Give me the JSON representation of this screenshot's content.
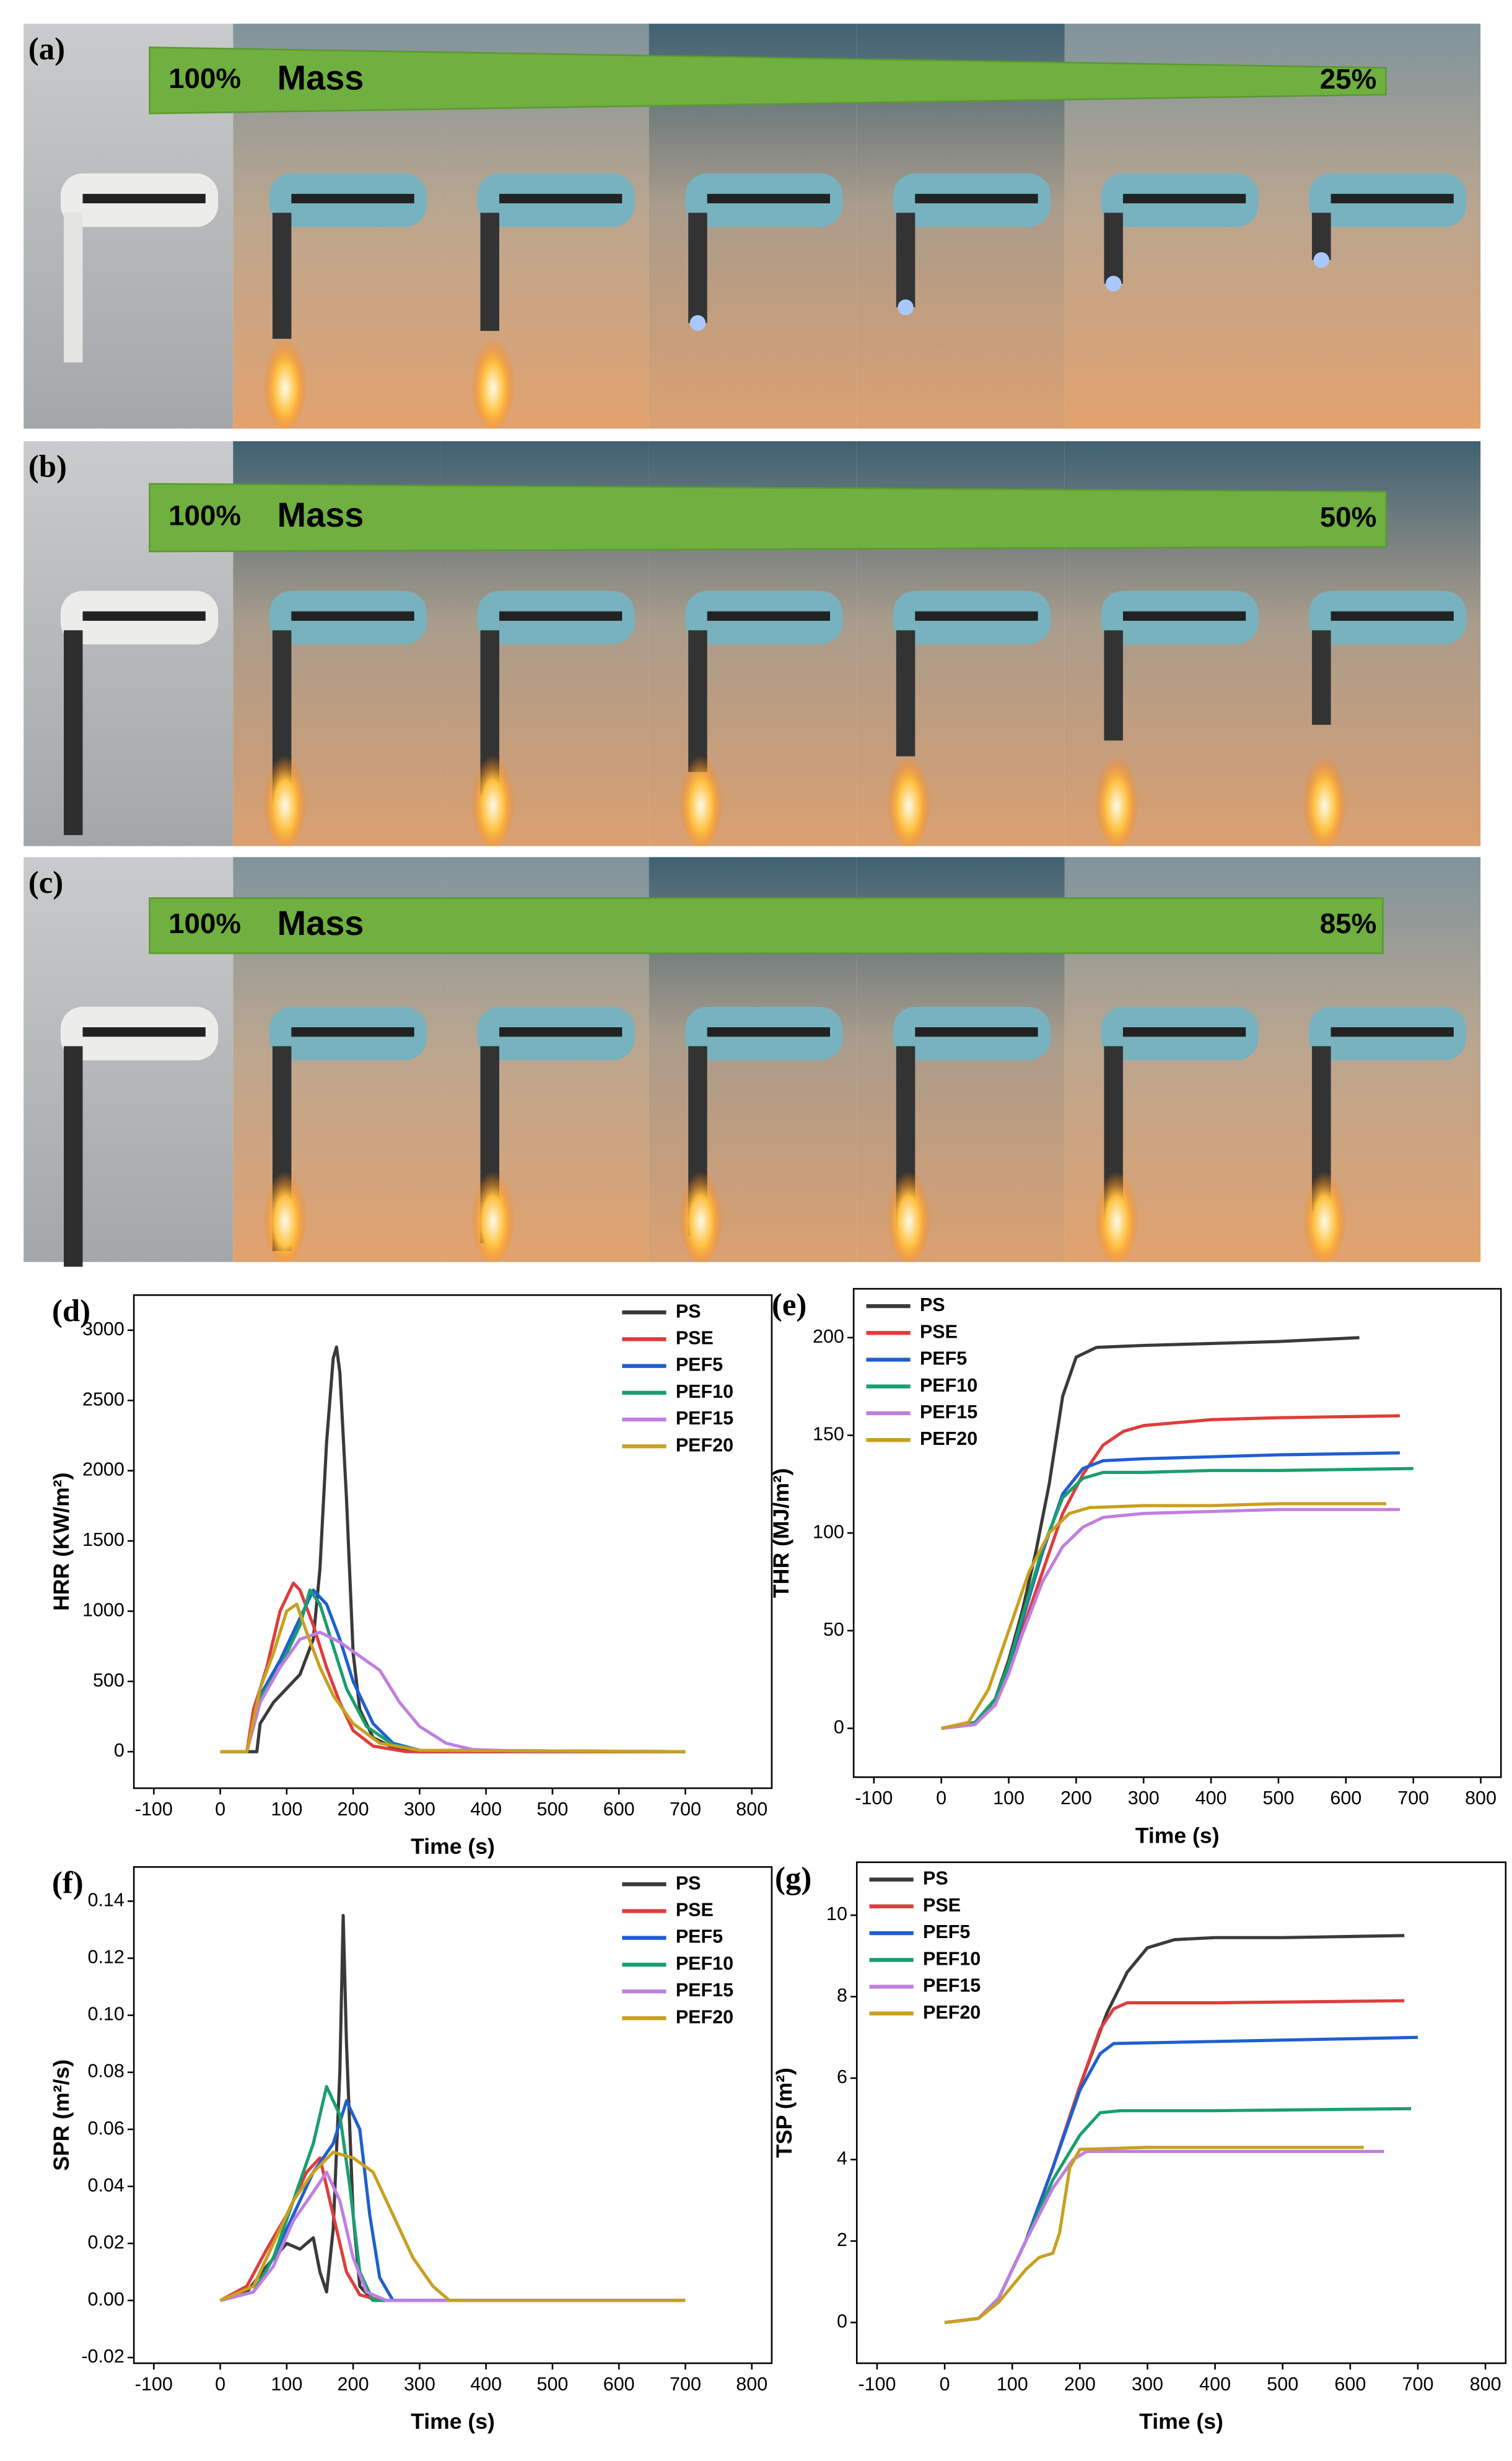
{
  "photo_panels": [
    {
      "label": "(a)",
      "start": "100%",
      "word": "Mass",
      "end": "25%"
    },
    {
      "label": "(b)",
      "start": "100%",
      "word": "Mass",
      "end": "50%"
    },
    {
      "label": "(c)",
      "start": "100%",
      "word": "Mass",
      "end": "85%"
    }
  ],
  "chart_data": [
    {
      "type": "line",
      "panel_label": "(d)",
      "xlabel": "Time (s)",
      "ylabel": "HRR (KW/m²)",
      "xlim": [
        -130,
        830
      ],
      "ylim": [
        -260,
        3250
      ],
      "xticks": [
        -100,
        0,
        100,
        200,
        300,
        400,
        500,
        600,
        700,
        800
      ],
      "yticks": [
        0,
        500,
        1000,
        1500,
        2000,
        2500,
        3000
      ],
      "legend": "upper right",
      "series": [
        {
          "name": "PS",
          "color": "#3a3a3a",
          "x": [
            0,
            55,
            60,
            80,
            100,
            120,
            140,
            150,
            160,
            170,
            175,
            180,
            190,
            200,
            210,
            230,
            260,
            300,
            700
          ],
          "values": [
            0,
            0,
            200,
            350,
            450,
            550,
            800,
            1300,
            2200,
            2800,
            2880,
            2700,
            1800,
            700,
            300,
            100,
            30,
            0,
            0
          ]
        },
        {
          "name": "PSE",
          "color": "#e03c3c",
          "x": [
            0,
            40,
            50,
            70,
            90,
            110,
            120,
            140,
            160,
            180,
            200,
            230,
            280,
            700
          ],
          "values": [
            0,
            0,
            300,
            600,
            1000,
            1200,
            1150,
            900,
            600,
            350,
            150,
            40,
            0,
            0
          ]
        },
        {
          "name": "PEF5",
          "color": "#1f5fcf",
          "x": [
            0,
            40,
            60,
            90,
            120,
            140,
            160,
            180,
            200,
            230,
            260,
            300,
            700
          ],
          "values": [
            0,
            0,
            400,
            650,
            950,
            1150,
            1050,
            800,
            500,
            200,
            60,
            10,
            0
          ]
        },
        {
          "name": "PEF10",
          "color": "#1a9e6e",
          "x": [
            0,
            40,
            60,
            90,
            120,
            135,
            150,
            170,
            190,
            220,
            260,
            300,
            700
          ],
          "values": [
            0,
            0,
            380,
            600,
            900,
            1150,
            1050,
            750,
            450,
            180,
            50,
            10,
            0
          ]
        },
        {
          "name": "PEF15",
          "color": "#c07fe0",
          "x": [
            0,
            40,
            60,
            90,
            120,
            150,
            180,
            210,
            240,
            270,
            300,
            340,
            380,
            450,
            700
          ],
          "values": [
            0,
            0,
            350,
            600,
            800,
            850,
            780,
            680,
            580,
            350,
            180,
            60,
            15,
            5,
            0
          ]
        },
        {
          "name": "PEF20",
          "color": "#c8a020",
          "x": [
            0,
            40,
            60,
            80,
            100,
            115,
            130,
            150,
            170,
            200,
            240,
            300,
            700
          ],
          "values": [
            0,
            0,
            450,
            700,
            1000,
            1050,
            850,
            600,
            400,
            200,
            60,
            10,
            0
          ]
        }
      ]
    },
    {
      "type": "line",
      "panel_label": "(e)",
      "xlabel": "Time (s)",
      "ylabel": "THR (MJ/m²)",
      "xlim": [
        -130,
        830
      ],
      "ylim": [
        -25,
        225
      ],
      "xticks": [
        -100,
        0,
        100,
        200,
        300,
        400,
        500,
        600,
        700,
        800
      ],
      "yticks": [
        0,
        50,
        100,
        150,
        200
      ],
      "legend": "upper left",
      "series": [
        {
          "name": "PS",
          "color": "#3a3a3a",
          "x": [
            0,
            50,
            80,
            100,
            120,
            140,
            160,
            180,
            200,
            230,
            300,
            400,
            500,
            620
          ],
          "values": [
            0,
            2,
            15,
            35,
            60,
            90,
            125,
            170,
            190,
            195,
            196,
            197,
            198,
            200
          ]
        },
        {
          "name": "PSE",
          "color": "#e03c3c",
          "x": [
            0,
            50,
            80,
            100,
            120,
            150,
            180,
            210,
            240,
            270,
            300,
            400,
            500,
            680
          ],
          "values": [
            0,
            2,
            12,
            30,
            50,
            80,
            110,
            130,
            145,
            152,
            155,
            158,
            159,
            160
          ]
        },
        {
          "name": "PEF5",
          "color": "#1f5fcf",
          "x": [
            0,
            50,
            80,
            100,
            120,
            150,
            180,
            210,
            240,
            300,
            400,
            500,
            680
          ],
          "values": [
            0,
            3,
            15,
            32,
            55,
            90,
            120,
            133,
            137,
            138,
            139,
            140,
            141
          ]
        },
        {
          "name": "PEF10",
          "color": "#1a9e6e",
          "x": [
            0,
            50,
            80,
            100,
            120,
            150,
            180,
            210,
            240,
            300,
            400,
            500,
            700
          ],
          "values": [
            0,
            3,
            15,
            33,
            57,
            92,
            118,
            128,
            131,
            131,
            132,
            132,
            133
          ]
        },
        {
          "name": "PEF15",
          "color": "#c07fe0",
          "x": [
            0,
            50,
            80,
            100,
            120,
            150,
            180,
            210,
            240,
            300,
            400,
            500,
            680
          ],
          "values": [
            0,
            2,
            12,
            28,
            48,
            75,
            93,
            103,
            108,
            110,
            111,
            112,
            112
          ]
        },
        {
          "name": "PEF20",
          "color": "#c8a020",
          "x": [
            0,
            40,
            70,
            100,
            130,
            160,
            190,
            220,
            300,
            400,
            500,
            660
          ],
          "values": [
            0,
            3,
            20,
            50,
            80,
            100,
            110,
            113,
            114,
            114,
            115,
            115
          ]
        }
      ]
    },
    {
      "type": "line",
      "panel_label": "(f)",
      "xlabel": "Time (s)",
      "ylabel": "SPR (m²/s)",
      "xlim": [
        -130,
        830
      ],
      "ylim": [
        -0.022,
        0.152
      ],
      "xticks": [
        -100,
        0,
        100,
        200,
        300,
        400,
        500,
        600,
        700,
        800
      ],
      "yticks": [
        {
          "value": -0.02,
          "label": "-0.02"
        },
        {
          "value": 0,
          "label": "0.00"
        },
        {
          "value": 0.02,
          "label": "0.02"
        },
        {
          "value": 0.04,
          "label": "0.04"
        },
        {
          "value": 0.06,
          "label": "0.06"
        },
        {
          "value": 0.08,
          "label": "0.08"
        },
        {
          "value": 0.1,
          "label": "0.10"
        },
        {
          "value": 0.12,
          "label": "0.12"
        },
        {
          "value": 0.14,
          "label": "0.14"
        }
      ],
      "legend": "upper right",
      "series": [
        {
          "name": "PS",
          "color": "#3a3a3a",
          "x": [
            0,
            40,
            70,
            100,
            120,
            140,
            150,
            160,
            170,
            180,
            185,
            190,
            200,
            210,
            230,
            700
          ],
          "values": [
            0,
            0.003,
            0.012,
            0.02,
            0.018,
            0.022,
            0.01,
            0.003,
            0.025,
            0.08,
            0.135,
            0.09,
            0.03,
            0.005,
            0,
            0
          ]
        },
        {
          "name": "PSE",
          "color": "#e03c3c",
          "x": [
            0,
            40,
            70,
            100,
            130,
            150,
            170,
            190,
            210,
            240,
            700
          ],
          "values": [
            0,
            0.005,
            0.018,
            0.03,
            0.045,
            0.05,
            0.03,
            0.01,
            0.002,
            0,
            0
          ]
        },
        {
          "name": "PEF5",
          "color": "#1f5fcf",
          "x": [
            0,
            50,
            80,
            110,
            140,
            170,
            190,
            210,
            225,
            240,
            260,
            700
          ],
          "values": [
            0,
            0.003,
            0.015,
            0.03,
            0.045,
            0.055,
            0.07,
            0.06,
            0.03,
            0.008,
            0,
            0
          ]
        },
        {
          "name": "PEF10",
          "color": "#1a9e6e",
          "x": [
            0,
            50,
            80,
            110,
            140,
            160,
            180,
            195,
            210,
            230,
            700
          ],
          "values": [
            0,
            0.003,
            0.015,
            0.035,
            0.055,
            0.075,
            0.065,
            0.04,
            0.01,
            0,
            0
          ]
        },
        {
          "name": "PEF15",
          "color": "#c07fe0",
          "x": [
            0,
            50,
            80,
            110,
            140,
            160,
            180,
            200,
            220,
            250,
            700
          ],
          "values": [
            0,
            0.003,
            0.012,
            0.028,
            0.038,
            0.045,
            0.035,
            0.015,
            0.003,
            0,
            0
          ]
        },
        {
          "name": "PEF20",
          "color": "#c8a020",
          "x": [
            0,
            50,
            80,
            110,
            140,
            170,
            200,
            230,
            260,
            290,
            320,
            345,
            700
          ],
          "values": [
            0,
            0.005,
            0.02,
            0.035,
            0.045,
            0.052,
            0.05,
            0.045,
            0.03,
            0.015,
            0.005,
            0,
            0
          ]
        }
      ]
    },
    {
      "type": "line",
      "panel_label": "(g)",
      "xlabel": "Time (s)",
      "ylabel": "TSP (m²)",
      "xlim": [
        -130,
        830
      ],
      "ylim": [
        -1,
        11.3
      ],
      "xticks": [
        -100,
        0,
        100,
        200,
        300,
        400,
        500,
        600,
        700,
        800
      ],
      "yticks": [
        0,
        2,
        4,
        6,
        8,
        10
      ],
      "legend": "upper left",
      "series": [
        {
          "name": "PS",
          "color": "#3a3a3a",
          "x": [
            0,
            50,
            80,
            120,
            160,
            200,
            240,
            270,
            300,
            340,
            400,
            500,
            680
          ],
          "values": [
            0,
            0.1,
            0.6,
            2,
            3.8,
            5.8,
            7.6,
            8.6,
            9.2,
            9.4,
            9.45,
            9.45,
            9.5
          ]
        },
        {
          "name": "PSE",
          "color": "#e03c3c",
          "x": [
            0,
            50,
            80,
            120,
            160,
            200,
            230,
            250,
            270,
            400,
            680
          ],
          "values": [
            0,
            0.1,
            0.6,
            2,
            3.8,
            5.8,
            7.2,
            7.7,
            7.85,
            7.85,
            7.9
          ]
        },
        {
          "name": "PEF5",
          "color": "#1f5fcf",
          "x": [
            0,
            50,
            80,
            120,
            160,
            200,
            230,
            250,
            400,
            700
          ],
          "values": [
            0,
            0.1,
            0.6,
            2,
            3.8,
            5.7,
            6.6,
            6.85,
            6.9,
            7
          ]
        },
        {
          "name": "PEF10",
          "color": "#1a9e6e",
          "x": [
            0,
            50,
            80,
            120,
            160,
            200,
            230,
            260,
            400,
            690
          ],
          "values": [
            0,
            0.1,
            0.6,
            2,
            3.5,
            4.6,
            5.15,
            5.2,
            5.2,
            5.25
          ]
        },
        {
          "name": "PEF15",
          "color": "#c07fe0",
          "x": [
            0,
            50,
            80,
            120,
            160,
            190,
            210,
            400,
            650
          ],
          "values": [
            0,
            0.1,
            0.6,
            2,
            3.3,
            4,
            4.2,
            4.2,
            4.2
          ]
        },
        {
          "name": "PEF20",
          "color": "#c8a020",
          "x": [
            0,
            50,
            80,
            120,
            140,
            160,
            170,
            185,
            200,
            300,
            620
          ],
          "values": [
            0,
            0.1,
            0.5,
            1.3,
            1.6,
            1.7,
            2.2,
            3.8,
            4.25,
            4.3,
            4.3
          ]
        }
      ]
    }
  ]
}
